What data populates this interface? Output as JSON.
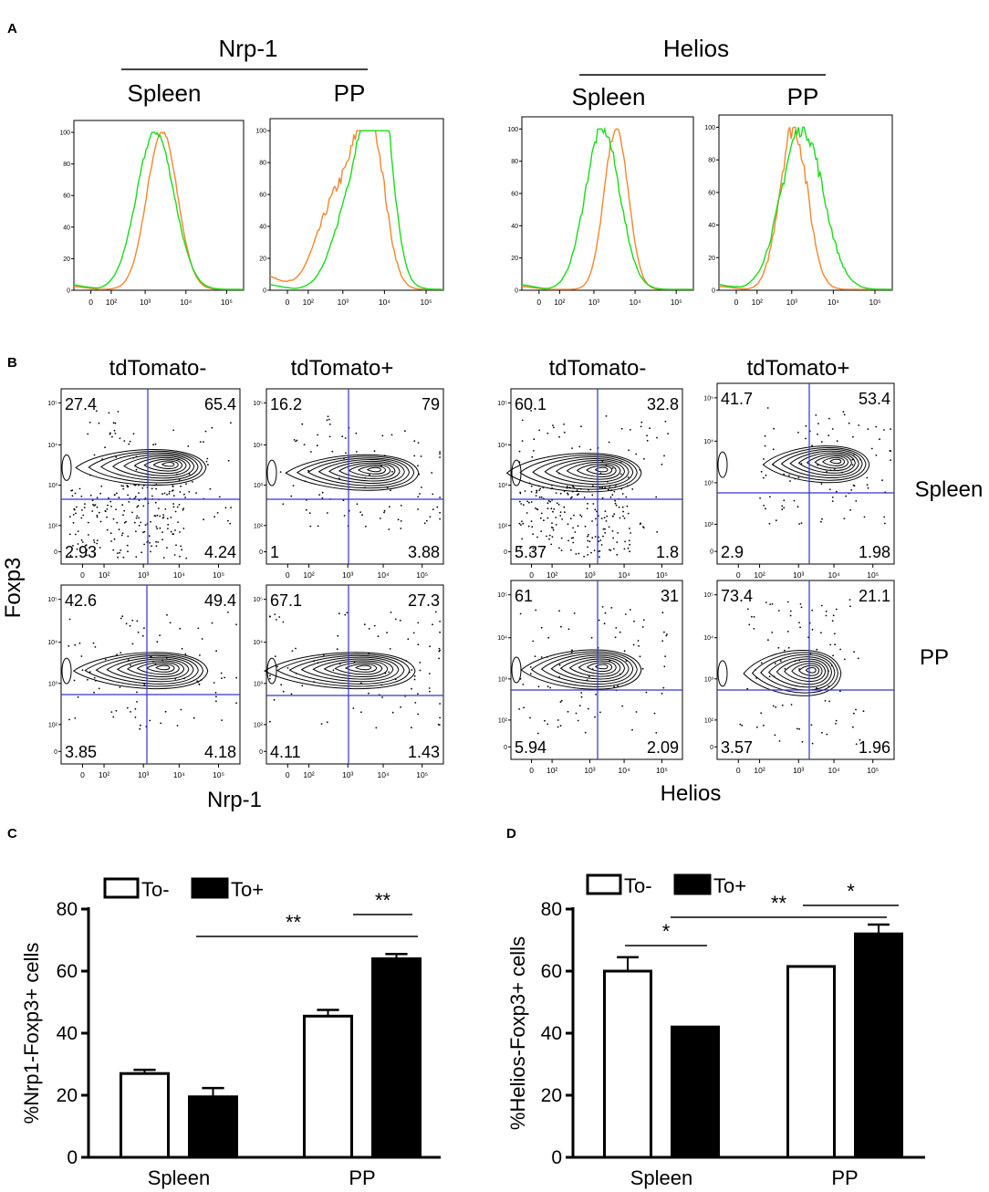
{
  "panels": {
    "a": "A",
    "b": "B",
    "c": "C",
    "d": "D"
  },
  "colors": {
    "group_a": "#f7862b",
    "group_b": "#19dd19",
    "gate": "#3434d0",
    "black": "#000000"
  },
  "histograms": {
    "yticks": [
      "0",
      "20",
      "40",
      "60",
      "80",
      "100"
    ],
    "xticks": [
      "0",
      "10²",
      "10³",
      "10⁴",
      "10⁵"
    ],
    "groups": [
      {
        "title": "Nrp-1",
        "subs": [
          "Spleen",
          "PP"
        ]
      },
      {
        "title": "Helios",
        "subs": [
          "Spleen",
          "PP"
        ]
      }
    ]
  },
  "flow": {
    "col_labels": [
      "tdTomato-",
      "tdTomato+",
      "tdTomato-",
      "tdTomato+"
    ],
    "row_labels": [
      "Spleen",
      "PP"
    ],
    "ylabel": "Foxp3",
    "xlabels": [
      "Nrp-1",
      "Helios"
    ],
    "axis_ticks": {
      "y": [
        "10⁵",
        "10⁴",
        "10³",
        "10²",
        "0"
      ],
      "x": [
        "0",
        "10²",
        "10³",
        "10⁴",
        "10⁵"
      ]
    },
    "plots": [
      {
        "ul": "27.4",
        "ur": "65.4",
        "ll": "2.93",
        "lr": "4.24"
      },
      {
        "ul": "16.2",
        "ur": "79",
        "ll": "1",
        "lr": "3.88"
      },
      {
        "ul": "60.1",
        "ur": "32.8",
        "ll": "5.37",
        "lr": "1.8"
      },
      {
        "ul": "41.7",
        "ur": "53.4",
        "ll": "2.9",
        "lr": "1.98"
      },
      {
        "ul": "42.6",
        "ur": "49.4",
        "ll": "3.85",
        "lr": "4.18"
      },
      {
        "ul": "67.1",
        "ur": "27.3",
        "ll": "4.11",
        "lr": "1.43"
      },
      {
        "ul": "61",
        "ur": "31",
        "ll": "5.94",
        "lr": "2.09"
      },
      {
        "ul": "73.4",
        "ur": "21.1",
        "ll": "3.57",
        "lr": "1.96"
      }
    ]
  },
  "chart_data": [
    {
      "type": "bar",
      "title": "",
      "ylabel": "%Nrp1-Foxp3+ cells",
      "xlabel": "",
      "categories": [
        "Spleen",
        "PP"
      ],
      "ylim": [
        0,
        80
      ],
      "yticks": [
        "0",
        "20",
        "40",
        "60",
        "80"
      ],
      "series": [
        {
          "name": "To-",
          "values": [
            27,
            45.5
          ],
          "errors": [
            1.2,
            2.0
          ],
          "fill": "white"
        },
        {
          "name": "To+",
          "values": [
            19.5,
            64
          ],
          "errors": [
            2.8,
            1.5
          ],
          "fill": "black"
        }
      ],
      "significance": [
        {
          "label": "**",
          "from": [
            0,
            1
          ],
          "to": [
            1,
            1
          ]
        },
        {
          "label": "**",
          "from": [
            1,
            0
          ],
          "to": [
            1,
            1
          ]
        }
      ]
    },
    {
      "type": "bar",
      "title": "",
      "ylabel": "%Helios-Foxp3+ cells",
      "xlabel": "",
      "categories": [
        "Spleen",
        "PP"
      ],
      "ylim": [
        0,
        80
      ],
      "yticks": [
        "0",
        "20",
        "40",
        "60",
        "80"
      ],
      "series": [
        {
          "name": "To-",
          "values": [
            60,
            61.5
          ],
          "errors": [
            4.5,
            0
          ],
          "fill": "white"
        },
        {
          "name": "To+",
          "values": [
            42,
            72
          ],
          "errors": [
            0,
            3
          ],
          "fill": "black"
        }
      ],
      "significance": [
        {
          "label": "*",
          "from": [
            0,
            0
          ],
          "to": [
            0,
            1
          ]
        },
        {
          "label": "**",
          "from": [
            0,
            1
          ],
          "to": [
            1,
            1
          ]
        },
        {
          "label": "*",
          "from": [
            1,
            0
          ],
          "to": [
            1,
            1
          ]
        }
      ]
    }
  ]
}
